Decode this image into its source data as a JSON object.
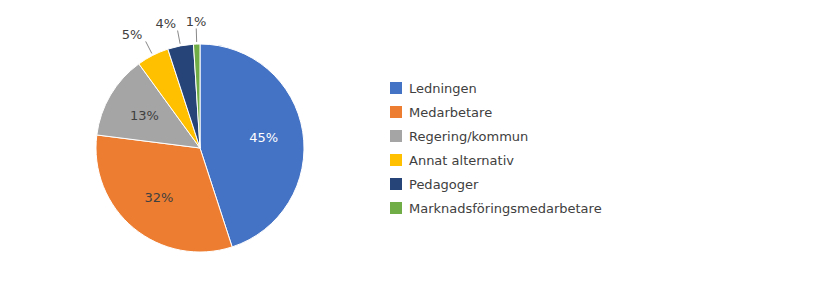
{
  "chart_data": {
    "type": "pie",
    "categories": [
      "Ledningen",
      "Medarbetare",
      "Regering/kommun",
      "Annat alternativ",
      "Pedagoger",
      "Marknadsföringsmedarbetare"
    ],
    "values": [
      45,
      32,
      13,
      5,
      4,
      1
    ],
    "value_labels": [
      "45%",
      "32%",
      "13%",
      "5%",
      "4%",
      "1%"
    ],
    "colors": [
      "#4472C4",
      "#ED7D31",
      "#A5A5A5",
      "#FFC000",
      "#264478",
      "#70AD47"
    ],
    "data_labels": true,
    "legend": "right"
  }
}
